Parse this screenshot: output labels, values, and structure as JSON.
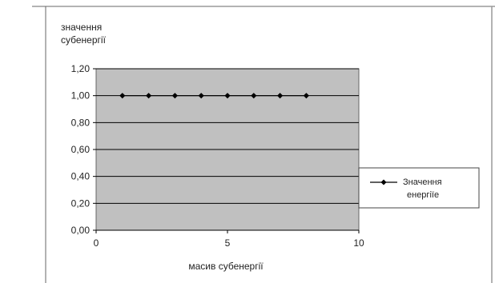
{
  "chart_data": {
    "type": "scatter",
    "ylabel_lines": [
      "значення",
      "субенергії"
    ],
    "xlabel": "масив субенергії",
    "xlim": [
      0,
      10
    ],
    "ylim": [
      0,
      1.2
    ],
    "x_ticks": [
      0,
      5,
      10
    ],
    "y_ticks": [
      "0,00",
      "0,20",
      "0,40",
      "0,60",
      "0,80",
      "1,00",
      "1,20"
    ],
    "y_tick_values": [
      0,
      0.2,
      0.4,
      0.6,
      0.8,
      1.0,
      1.2
    ],
    "grid": true,
    "legend": {
      "position": "right",
      "lines": [
        "Значення",
        "енергiïе"
      ]
    },
    "series": [
      {
        "name": "Значення енергiïе",
        "color": "#000000",
        "marker": "diamond",
        "x": [
          1,
          2,
          3,
          4,
          5,
          6,
          7,
          8
        ],
        "y": [
          1.0,
          1.0,
          1.0,
          1.0,
          1.0,
          1.0,
          1.0,
          1.0
        ]
      }
    ]
  },
  "colors": {
    "plot_bg": "#c0c0c0",
    "grid": "#000000",
    "border": "#888888"
  }
}
